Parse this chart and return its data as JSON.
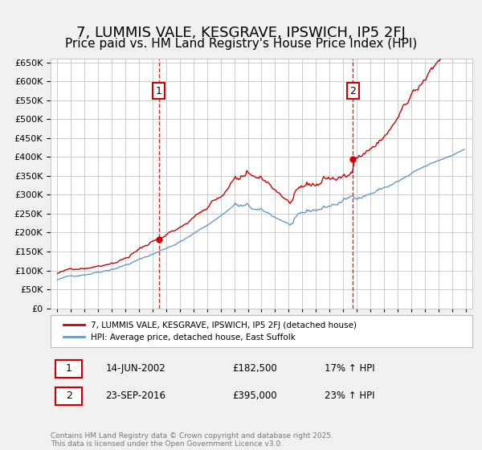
{
  "title": "7, LUMMIS VALE, KESGRAVE, IPSWICH, IP5 2FJ",
  "subtitle": "Price paid vs. HM Land Registry's House Price Index (HPI)",
  "title_fontsize": 13,
  "subtitle_fontsize": 11,
  "background_color": "#f0f0f0",
  "plot_bg_color": "#ffffff",
  "grid_color": "#cccccc",
  "red_color": "#cc0000",
  "blue_color": "#6699cc",
  "sale1_year": 2002.45,
  "sale1_price": 182500,
  "sale2_year": 2016.73,
  "sale2_price": 395000,
  "legend_entry1": "7, LUMMIS VALE, KESGRAVE, IPSWICH, IP5 2FJ (detached house)",
  "legend_entry2": "HPI: Average price, detached house, East Suffolk",
  "sale1_date": "14-JUN-2002",
  "sale1_price_str": "£182,500",
  "sale1_hpi": "17% ↑ HPI",
  "sale2_date": "23-SEP-2016",
  "sale2_price_str": "£395,000",
  "sale2_hpi": "23% ↑ HPI",
  "footer": "Contains HM Land Registry data © Crown copyright and database right 2025.\nThis data is licensed under the Open Government Licence v3.0.",
  "ylim": [
    0,
    660000
  ],
  "yticks": [
    0,
    50000,
    100000,
    150000,
    200000,
    250000,
    300000,
    350000,
    400000,
    450000,
    500000,
    550000,
    600000,
    650000
  ],
  "xlim_start": 1994.5,
  "xlim_end": 2025.5
}
